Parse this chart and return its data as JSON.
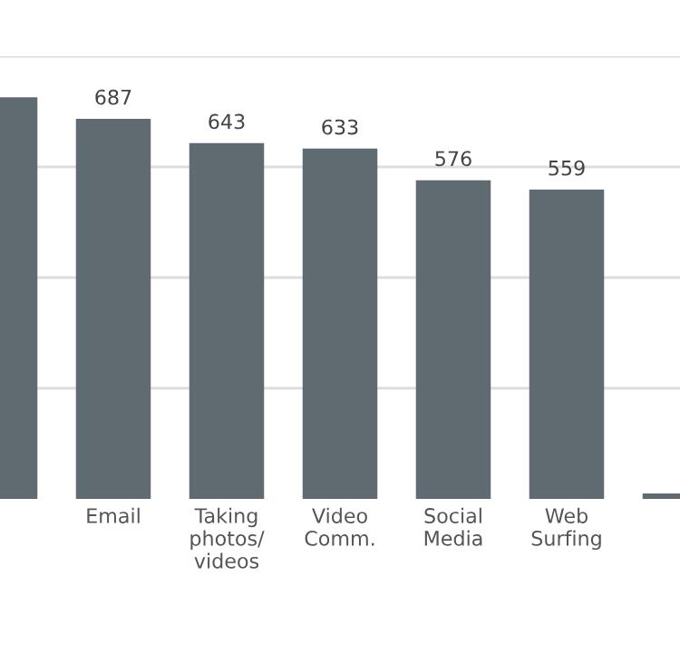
{
  "chart_data": {
    "type": "bar",
    "categories": [
      null,
      "Email",
      "Taking\nphotos/\nvideos",
      "Video\nComm.",
      "Social\nMedia",
      "Web\nSurfing",
      null
    ],
    "values": [
      726,
      687,
      643,
      633,
      576,
      559,
      10
    ],
    "value_labels": [
      null,
      "687",
      "643",
      "633",
      "576",
      "559",
      null
    ],
    "color": "#5f6b70",
    "ylim": [
      0,
      800
    ],
    "yticks": [
      {
        "value": 200,
        "label": null
      },
      {
        "value": 400,
        "label": null
      },
      {
        "value": 600,
        "label": null
      },
      {
        "value": 800,
        "label": null
      }
    ],
    "grid": "y"
  }
}
